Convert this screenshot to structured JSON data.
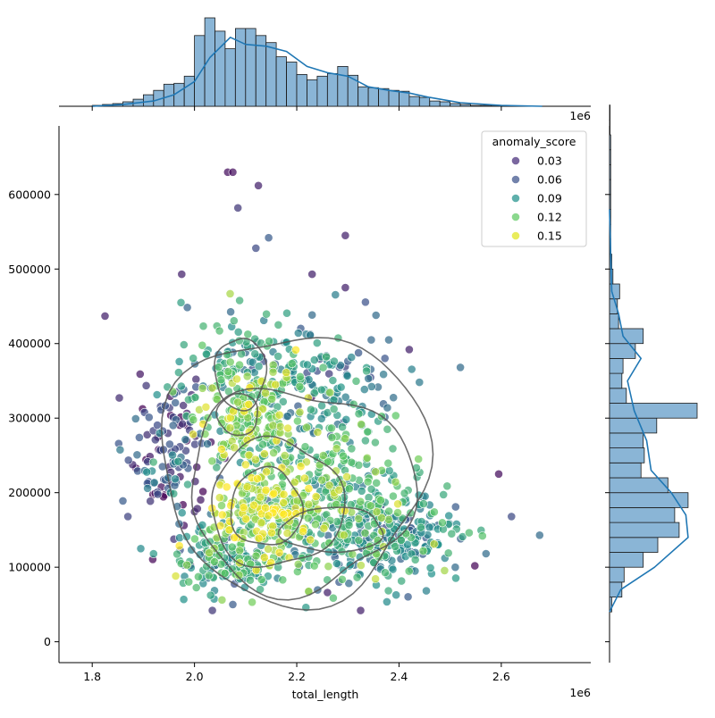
{
  "chart_data": {
    "type": "scatter",
    "subtype": "jointplot",
    "xlabel": "total_length",
    "ylabel": "",
    "x_multiplier_label": "1e6",
    "xlim": [
      1.735,
      2.775
    ],
    "ylim": [
      -28000,
      692000
    ],
    "x_ticks": [
      1.8,
      2.0,
      2.2,
      2.4,
      2.6
    ],
    "x_tick_labels": [
      "1.8",
      "2.0",
      "2.2",
      "2.4",
      "2.6"
    ],
    "y_ticks": [
      0,
      100000,
      200000,
      300000,
      400000,
      500000,
      600000
    ],
    "y_tick_labels": [
      "0",
      "100000",
      "200000",
      "300000",
      "400000",
      "500000",
      "600000"
    ],
    "legend": {
      "title": "anomaly_score",
      "position": "top-right",
      "entries": [
        {
          "label": "0.03",
          "color": "#472c7a"
        },
        {
          "label": "0.06",
          "color": "#3b528b"
        },
        {
          "label": "0.09",
          "color": "#21918c"
        },
        {
          "label": "0.12",
          "color": "#5ec962"
        },
        {
          "label": "0.15",
          "color": "#e1e41d"
        }
      ]
    },
    "colors": {
      "hist_fill": "#8ab5d6",
      "hist_edge": "#1a1a1a",
      "kde_line": "#1f77b4",
      "contour": "#555555"
    },
    "scatter_clusters": [
      {
        "cx": 2.14,
        "cy": 175000,
        "sx": 0.05,
        "sy": 30000,
        "n": 220,
        "score": 0.14
      },
      {
        "cx": 2.1,
        "cy": 300000,
        "sx": 0.05,
        "sy": 35000,
        "n": 200,
        "score": 0.12
      },
      {
        "cx": 2.26,
        "cy": 190000,
        "sx": 0.08,
        "sy": 55000,
        "n": 320,
        "score": 0.11
      },
      {
        "cx": 2.38,
        "cy": 140000,
        "sx": 0.07,
        "sy": 30000,
        "n": 260,
        "score": 0.08
      },
      {
        "cx": 2.06,
        "cy": 110000,
        "sx": 0.05,
        "sy": 22000,
        "n": 160,
        "score": 0.09
      },
      {
        "cx": 2.1,
        "cy": 380000,
        "sx": 0.06,
        "sy": 35000,
        "n": 110,
        "score": 0.1
      },
      {
        "cx": 1.95,
        "cy": 250000,
        "sx": 0.04,
        "sy": 50000,
        "n": 130,
        "score": 0.04
      },
      {
        "cx": 2.25,
        "cy": 340000,
        "sx": 0.07,
        "sy": 35000,
        "n": 130,
        "score": 0.07
      }
    ],
    "scatter_outliers": [
      {
        "x": 1.825,
        "y": 437000,
        "score": 0.02
      },
      {
        "x": 2.065,
        "y": 630000,
        "score": 0.01
      },
      {
        "x": 2.075,
        "y": 630000,
        "score": 0.01
      },
      {
        "x": 2.125,
        "y": 612000,
        "score": 0.02
      },
      {
        "x": 2.085,
        "y": 582000,
        "score": 0.03
      },
      {
        "x": 2.295,
        "y": 545000,
        "score": 0.02
      },
      {
        "x": 2.145,
        "y": 542000,
        "score": 0.05
      },
      {
        "x": 2.12,
        "y": 528000,
        "score": 0.04
      },
      {
        "x": 2.23,
        "y": 493000,
        "score": 0.02
      },
      {
        "x": 1.975,
        "y": 493000,
        "score": 0.02
      },
      {
        "x": 2.295,
        "y": 475000,
        "score": 0.02
      },
      {
        "x": 2.52,
        "y": 368000,
        "score": 0.06
      },
      {
        "x": 2.675,
        "y": 143000,
        "score": 0.06
      },
      {
        "x": 2.595,
        "y": 225000,
        "score": 0.01
      },
      {
        "x": 2.62,
        "y": 168000,
        "score": 0.04
      },
      {
        "x": 1.86,
        "y": 189000,
        "score": 0.05
      },
      {
        "x": 2.035,
        "y": 42000,
        "score": 0.03
      },
      {
        "x": 2.325,
        "y": 42000,
        "score": 0.02
      },
      {
        "x": 2.075,
        "y": 50000,
        "score": 0.05
      },
      {
        "x": 2.26,
        "y": 66000,
        "score": 0.02
      },
      {
        "x": 2.51,
        "y": 100000,
        "score": 0.06
      },
      {
        "x": 1.92,
        "y": 118000,
        "score": 0.09
      },
      {
        "x": 1.895,
        "y": 125000,
        "score": 0.08
      },
      {
        "x": 2.44,
        "y": 348000,
        "score": 0.07
      },
      {
        "x": 2.42,
        "y": 392000,
        "score": 0.02
      },
      {
        "x": 2.355,
        "y": 438000,
        "score": 0.06
      },
      {
        "x": 2.38,
        "y": 405000,
        "score": 0.06
      }
    ],
    "contours": [
      {
        "cx": 2.195,
        "cy": 235000,
        "rx": 0.26,
        "ry": 180000,
        "rot": 0.0,
        "wobble": 0.06
      },
      {
        "cx": 2.205,
        "cy": 205000,
        "rx": 0.22,
        "ry": 135000,
        "rot": 0.0,
        "wobble": 0.08
      },
      {
        "cx": 2.16,
        "cy": 185000,
        "rx": 0.13,
        "ry": 85000,
        "rot": 0.0,
        "wobble": 0.06
      },
      {
        "cx": 2.14,
        "cy": 180000,
        "rx": 0.07,
        "ry": 52000,
        "rot": 0.0,
        "wobble": 0.05
      },
      {
        "cx": 2.27,
        "cy": 150000,
        "rx": 0.1,
        "ry": 30000,
        "rot": 0.0,
        "wobble": 0.05
      },
      {
        "cx": 2.085,
        "cy": 305000,
        "rx": 0.04,
        "ry": 28000,
        "rot": 0.0,
        "wobble": 0.04
      },
      {
        "cx": 2.09,
        "cy": 360000,
        "rx": 0.05,
        "ry": 48000,
        "rot": 0.0,
        "wobble": 0.05
      }
    ],
    "top_hist": {
      "bin_edges_start": 1.8,
      "bin_width": 0.02,
      "counts": [
        1,
        2,
        3,
        5,
        8,
        13,
        18,
        25,
        26,
        34,
        80,
        100,
        85,
        65,
        88,
        88,
        80,
        72,
        56,
        50,
        36,
        30,
        34,
        37,
        45,
        35,
        22,
        21,
        20,
        18,
        17,
        11,
        10,
        6,
        5,
        3,
        2,
        1,
        1,
        1
      ],
      "kde": [
        [
          1.8,
          0
        ],
        [
          1.86,
          2
        ],
        [
          1.92,
          6
        ],
        [
          1.96,
          13
        ],
        [
          2.0,
          28
        ],
        [
          2.03,
          55
        ],
        [
          2.07,
          78
        ],
        [
          2.1,
          70
        ],
        [
          2.14,
          68
        ],
        [
          2.18,
          62
        ],
        [
          2.22,
          45
        ],
        [
          2.26,
          38
        ],
        [
          2.3,
          34
        ],
        [
          2.34,
          22
        ],
        [
          2.38,
          18
        ],
        [
          2.42,
          15
        ],
        [
          2.46,
          10
        ],
        [
          2.52,
          4
        ],
        [
          2.6,
          1
        ],
        [
          2.68,
          0
        ]
      ],
      "max": 100
    },
    "right_hist": {
      "bin_edges_start": 40000,
      "bin_width": 20000,
      "counts": [
        2,
        11,
        13,
        30,
        43,
        62,
        58,
        70,
        52,
        28,
        31,
        30,
        42,
        78,
        15,
        11,
        12,
        23,
        30,
        8,
        7,
        9,
        3,
        2,
        1,
        1,
        1,
        1,
        1,
        1,
        1,
        1,
        0.5,
        0.5
      ],
      "kde": [
        [
          40000,
          0
        ],
        [
          70000,
          10
        ],
        [
          100000,
          40
        ],
        [
          140000,
          70
        ],
        [
          170000,
          68
        ],
        [
          200000,
          55
        ],
        [
          230000,
          37
        ],
        [
          270000,
          33
        ],
        [
          310000,
          22
        ],
        [
          350000,
          16
        ],
        [
          380000,
          28
        ],
        [
          410000,
          12
        ],
        [
          440000,
          8
        ],
        [
          470000,
          2
        ],
        [
          520000,
          1
        ],
        [
          580000,
          0
        ]
      ],
      "max": 78
    }
  }
}
